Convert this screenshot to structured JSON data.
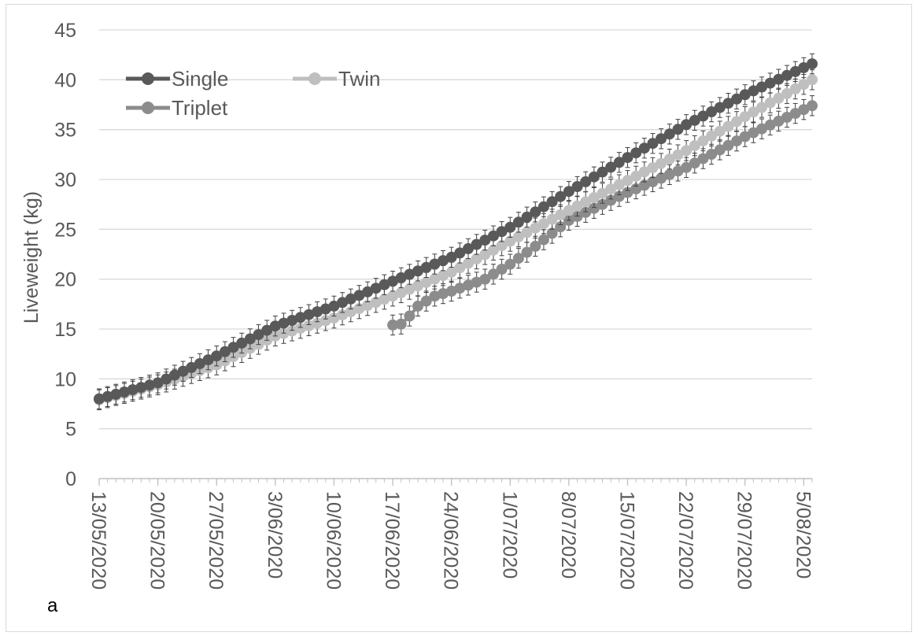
{
  "panel_label": "a",
  "chart_data": {
    "type": "line",
    "title": "",
    "xlabel": "",
    "ylabel": "Liveweight (kg)",
    "ylim": [
      0,
      45
    ],
    "yticks": [
      0,
      5,
      10,
      15,
      20,
      25,
      30,
      35,
      40,
      45
    ],
    "x_range": [
      "2020-05-13",
      "2020-08-06"
    ],
    "x_tick_labels": [
      "13/05/2020",
      "20/05/2020",
      "27/05/2020",
      "3/06/2020",
      "10/06/2020",
      "17/06/2020",
      "24/06/2020",
      "1/07/2020",
      "8/07/2020",
      "15/07/2020",
      "22/07/2020",
      "29/07/2020",
      "5/08/2020"
    ],
    "x_tick_dates": [
      "2020-05-13",
      "2020-05-20",
      "2020-05-27",
      "2020-06-03",
      "2020-06-10",
      "2020-06-17",
      "2020-06-24",
      "2020-07-01",
      "2020-07-08",
      "2020-07-15",
      "2020-07-22",
      "2020-07-29",
      "2020-08-05"
    ],
    "grid": "horizontal",
    "legend_position": "top-left",
    "error_bars": true,
    "series": [
      {
        "name": "Single",
        "color": "#595959",
        "points": [
          [
            "2020-05-13",
            8.0
          ],
          [
            "2020-05-20",
            9.6
          ],
          [
            "2020-05-27",
            12.3
          ],
          [
            "2020-06-03",
            15.3
          ],
          [
            "2020-06-10",
            17.3
          ],
          [
            "2020-06-17",
            19.8
          ],
          [
            "2020-06-24",
            22.2
          ],
          [
            "2020-07-01",
            25.2
          ],
          [
            "2020-07-08",
            28.8
          ],
          [
            "2020-07-15",
            32.2
          ],
          [
            "2020-07-22",
            35.5
          ],
          [
            "2020-07-29",
            38.5
          ],
          [
            "2020-08-06",
            41.6
          ]
        ],
        "error": 1.0
      },
      {
        "name": "Twin",
        "color": "#bfbfbf",
        "points": [
          [
            "2020-05-13",
            7.9
          ],
          [
            "2020-05-20",
            9.4
          ],
          [
            "2020-05-27",
            11.4
          ],
          [
            "2020-06-03",
            14.3
          ],
          [
            "2020-06-10",
            16.1
          ],
          [
            "2020-06-17",
            18.3
          ],
          [
            "2020-06-24",
            20.7
          ],
          [
            "2020-07-01",
            23.8
          ],
          [
            "2020-07-08",
            26.9
          ],
          [
            "2020-07-15",
            29.9
          ],
          [
            "2020-07-22",
            32.9
          ],
          [
            "2020-07-29",
            36.3
          ],
          [
            "2020-08-06",
            40.0
          ]
        ],
        "error": 1.0
      },
      {
        "name": "Triplet",
        "color": "#8c8c8c",
        "points": [
          [
            "2020-06-17",
            15.4
          ],
          [
            "2020-06-18",
            15.5
          ],
          [
            "2020-06-19",
            16.3
          ],
          [
            "2020-06-20",
            17.3
          ],
          [
            "2020-06-22",
            18.3
          ],
          [
            "2020-06-24",
            18.8
          ],
          [
            "2020-06-28",
            20.0
          ],
          [
            "2020-07-01",
            21.5
          ],
          [
            "2020-07-04",
            23.3
          ],
          [
            "2020-07-08",
            25.9
          ],
          [
            "2020-07-15",
            28.7
          ],
          [
            "2020-07-22",
            31.2
          ],
          [
            "2020-07-29",
            34.3
          ],
          [
            "2020-08-06",
            37.4
          ]
        ],
        "error": 1.0
      }
    ]
  }
}
